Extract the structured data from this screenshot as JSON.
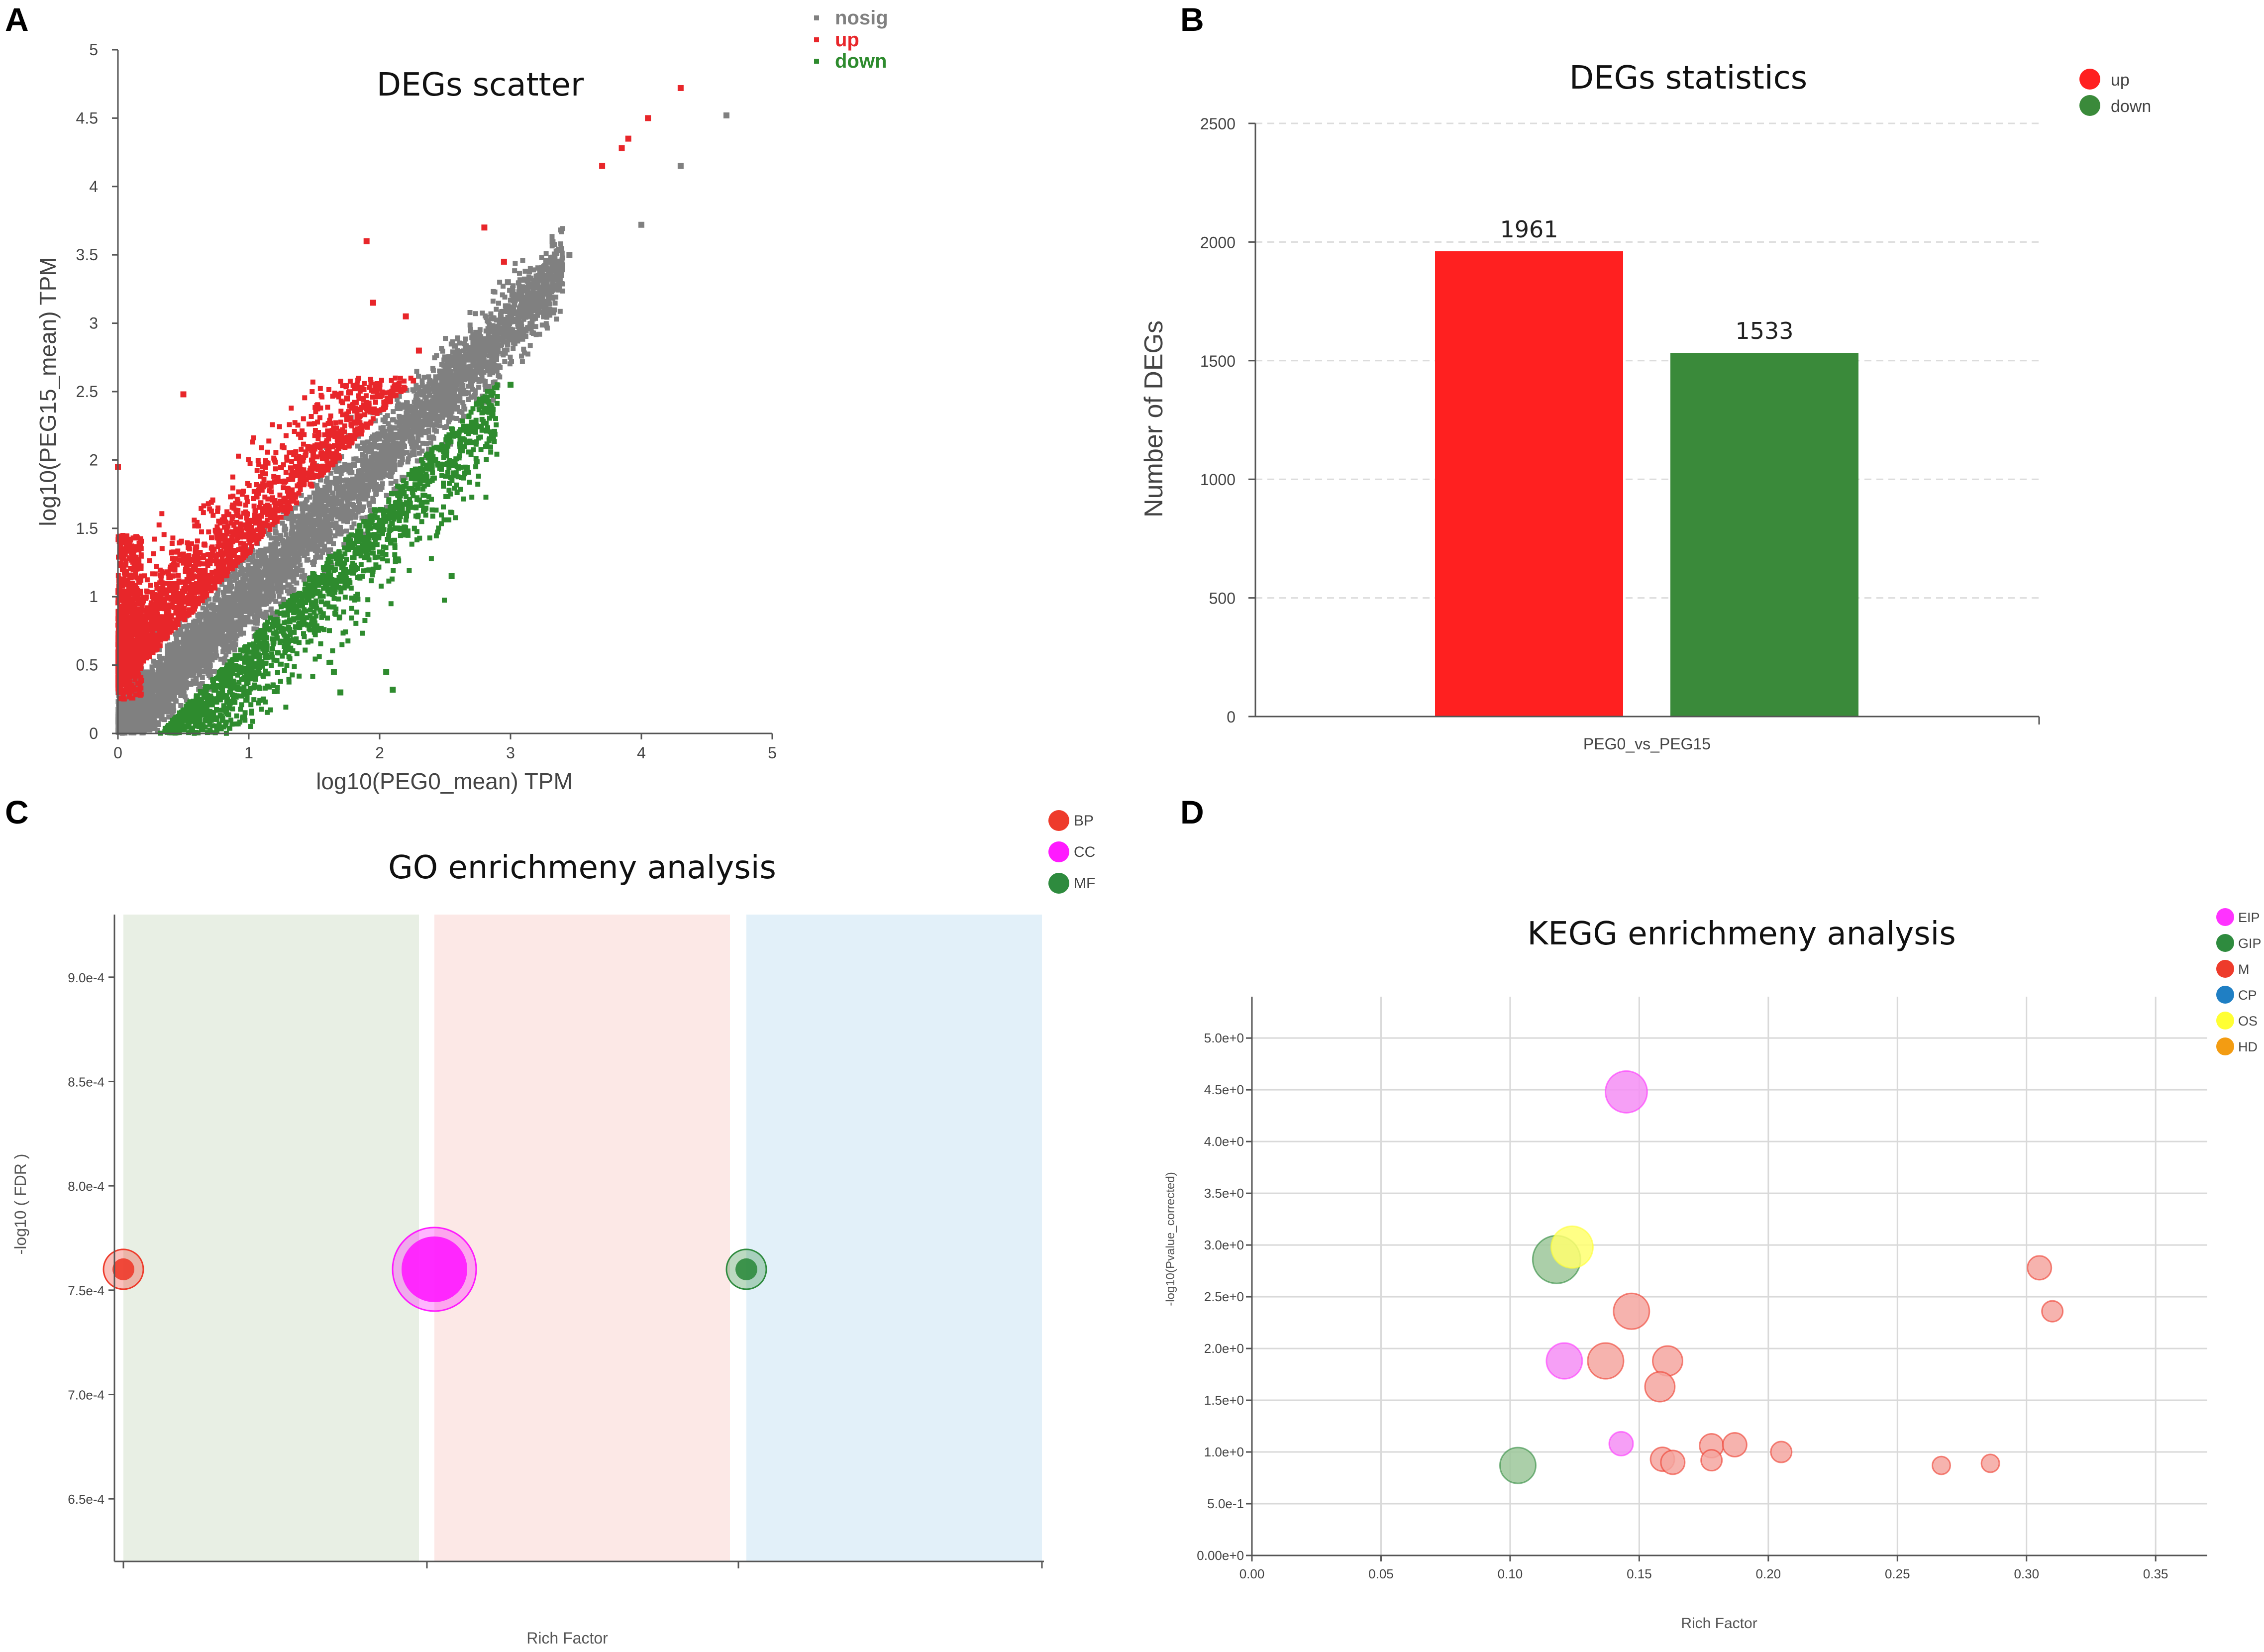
{
  "panel_letters": [
    "A",
    "B",
    "C",
    "D"
  ],
  "chart_data": [
    {
      "panel": "A",
      "type": "scatter",
      "title": "DEGs scatter",
      "xlabel": "log10(PEG0_mean) TPM",
      "ylabel": "log10(PEG15_mean) TPM",
      "xlim": [
        0,
        5
      ],
      "ylim": [
        0,
        5
      ],
      "xticks": [
        "0",
        "1",
        "2",
        "3",
        "4",
        "5"
      ],
      "yticks": [
        "0",
        "0.5",
        "1",
        "1.5",
        "2",
        "2.5",
        "3",
        "3.5",
        "4",
        "4.5",
        "5"
      ],
      "legend": [
        {
          "name": "nosig",
          "color": "#808080"
        },
        {
          "name": "up",
          "color": "#e8262a"
        },
        {
          "name": "down",
          "color": "#2e8b2e"
        }
      ],
      "series": [
        {
          "name": "nosig",
          "color": "#808080",
          "points": [
            [
              4.0,
              3.72
            ],
            [
              4.3,
              4.15
            ],
            [
              4.65,
              4.52
            ],
            [
              3.15,
              3.15
            ],
            [
              3.05,
              3.08
            ],
            [
              2.98,
              3.3
            ],
            [
              2.85,
              2.95
            ],
            [
              3.45,
              3.5
            ],
            [
              2.5,
              2.75
            ],
            [
              2.6,
              2.65
            ]
          ]
        },
        {
          "name": "up",
          "color": "#e8262a",
          "points": [
            [
              4.3,
              4.72
            ],
            [
              4.05,
              4.5
            ],
            [
              3.85,
              4.28
            ],
            [
              3.9,
              4.35
            ],
            [
              3.7,
              4.15
            ],
            [
              1.9,
              3.6
            ],
            [
              2.8,
              3.7
            ],
            [
              0.5,
              2.48
            ],
            [
              1.75,
              2.45
            ],
            [
              2.3,
              2.8
            ],
            [
              2.2,
              3.05
            ],
            [
              1.95,
              3.15
            ],
            [
              2.95,
              3.45
            ],
            [
              0.0,
              1.95
            ]
          ]
        },
        {
          "name": "down",
          "color": "#2e8b2e",
          "points": [
            [
              2.55,
              1.15
            ],
            [
              1.65,
              0.45
            ],
            [
              2.05,
              0.45
            ],
            [
              1.7,
              0.3
            ],
            [
              2.1,
              0.32
            ],
            [
              1.6,
              0.95
            ],
            [
              0.75,
              0.25
            ],
            [
              3.0,
              2.55
            ]
          ]
        }
      ]
    },
    {
      "panel": "B",
      "type": "bar",
      "title": "DEGs statistics",
      "xlabel": "PEG0_vs_PEG15",
      "ylabel": "Number of DEGs",
      "ylim": [
        0,
        2500
      ],
      "yticks": [
        "0",
        "500",
        "1000",
        "1500",
        "2000",
        "2500"
      ],
      "categories": [
        "PEG0_vs_PEG15"
      ],
      "series": [
        {
          "name": "up",
          "color": "#ff2020",
          "values": [
            1961
          ]
        },
        {
          "name": "down",
          "color": "#3a8a3a",
          "values": [
            1533
          ]
        }
      ],
      "legend_position": "top-right"
    },
    {
      "panel": "C",
      "type": "scatter",
      "title": "GO enrichmeny analysis",
      "xlabel": "Rich Factor",
      "ylabel": "-log10 ( FDR )",
      "ylim": [
        0.00062,
        0.00093
      ],
      "yticks": [
        "9.0e-4",
        "8.5e-4",
        "8.0e-4",
        "7.5e-4",
        "7.0e-4",
        "6.5e-4"
      ],
      "legend": [
        {
          "name": "BP",
          "color": "#ee3b2b"
        },
        {
          "name": "CC",
          "color": "#ff1aff"
        },
        {
          "name": "MF",
          "color": "#2e8b3e"
        }
      ],
      "bands": [
        {
          "name": "BP",
          "color": "#e8efe4"
        },
        {
          "name": "CC",
          "color": "#fce8e6"
        },
        {
          "name": "MF",
          "color": "#e2f0f9"
        }
      ],
      "points": [
        {
          "category": "BP",
          "value": 0.00076,
          "size": 1
        },
        {
          "category": "CC",
          "value": 0.00076,
          "size": 3
        },
        {
          "category": "MF",
          "value": 0.00076,
          "size": 1
        }
      ]
    },
    {
      "panel": "D",
      "type": "scatter",
      "title": "KEGG enrichmeny analysis",
      "xlabel": "Rich Factor",
      "ylabel": "-log10(Pvalue_corrected)",
      "xlim": [
        0,
        0.37
      ],
      "ylim": [
        0,
        5.4
      ],
      "xticks": [
        "0.00",
        "0.05",
        "0.10",
        "0.15",
        "0.20",
        "0.25",
        "0.30",
        "0.35"
      ],
      "yticks": [
        "0.00e+0",
        "5.0e-1",
        "1.0e+0",
        "1.5e+0",
        "2.0e+0",
        "2.5e+0",
        "3.0e+0",
        "3.5e+0",
        "4.0e+0",
        "4.5e+0",
        "5.0e+0"
      ],
      "legend": [
        {
          "name": "EIP",
          "color": "#ff33ff"
        },
        {
          "name": "GIP",
          "color": "#2e8b3e"
        },
        {
          "name": "M",
          "color": "#ee3b2b"
        },
        {
          "name": "CP",
          "color": "#1f7fc4"
        },
        {
          "name": "OS",
          "color": "#ffff33"
        },
        {
          "name": "HD",
          "color": "#f39c12"
        }
      ],
      "points": [
        {
          "x": 0.145,
          "y": 4.48,
          "cat": "EIP",
          "size": 5
        },
        {
          "x": 0.118,
          "y": 2.86,
          "cat": "GIP",
          "size": 6
        },
        {
          "x": 0.124,
          "y": 2.98,
          "cat": "OS",
          "size": 5
        },
        {
          "x": 0.147,
          "y": 2.36,
          "cat": "M",
          "size": 4
        },
        {
          "x": 0.121,
          "y": 1.88,
          "cat": "EIP",
          "size": 4
        },
        {
          "x": 0.137,
          "y": 1.88,
          "cat": "M",
          "size": 4
        },
        {
          "x": 0.161,
          "y": 1.88,
          "cat": "M",
          "size": 3
        },
        {
          "x": 0.158,
          "y": 1.63,
          "cat": "M",
          "size": 3
        },
        {
          "x": 0.143,
          "y": 1.08,
          "cat": "EIP",
          "size": 2
        },
        {
          "x": 0.159,
          "y": 0.93,
          "cat": "M",
          "size": 2
        },
        {
          "x": 0.163,
          "y": 0.9,
          "cat": "M",
          "size": 2
        },
        {
          "x": 0.178,
          "y": 1.06,
          "cat": "M",
          "size": 2
        },
        {
          "x": 0.178,
          "y": 0.92,
          "cat": "M",
          "size": 1.5
        },
        {
          "x": 0.187,
          "y": 1.07,
          "cat": "M",
          "size": 2
        },
        {
          "x": 0.205,
          "y": 1.0,
          "cat": "M",
          "size": 1.5
        },
        {
          "x": 0.267,
          "y": 0.87,
          "cat": "M",
          "size": 1
        },
        {
          "x": 0.286,
          "y": 0.89,
          "cat": "M",
          "size": 1
        },
        {
          "x": 0.305,
          "y": 2.78,
          "cat": "M",
          "size": 2
        },
        {
          "x": 0.31,
          "y": 2.36,
          "cat": "M",
          "size": 1.5
        },
        {
          "x": 0.103,
          "y": 0.87,
          "cat": "GIP",
          "size": 4
        }
      ]
    }
  ]
}
